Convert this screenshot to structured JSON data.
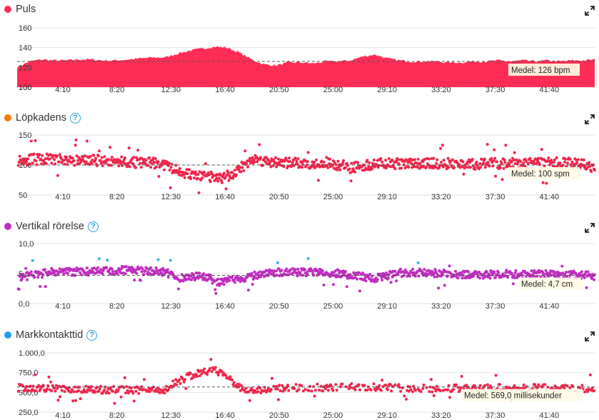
{
  "x_ticks": [
    "4:10",
    "8:20",
    "12:30",
    "16:40",
    "20:50",
    "25:00",
    "29:10",
    "33:20",
    "37:30",
    "41:40"
  ],
  "colors": {
    "pulse": "#ff2d55",
    "cadence": "#f57c00",
    "vertical": "#c02cc0",
    "ground": "#1ea1e8",
    "series_red": "#f0264a",
    "series_magenta": "#c02cc0",
    "vertical_high": "#3cb4e6",
    "vertical_top": "#5fb91f",
    "ground_low": "#5fb91f"
  },
  "chart_data": [
    {
      "id": "pulse",
      "type": "area",
      "title": "Puls",
      "help_icon": false,
      "yticks": [
        "160",
        "140",
        "120",
        "100"
      ],
      "ylim": [
        100,
        160
      ],
      "x_unit": "minutes",
      "xlim": [
        0,
        46.8
      ],
      "average": 126,
      "average_label": "Medel: 126 bpm",
      "x": [
        0,
        1,
        2,
        3,
        4,
        5,
        6,
        7,
        8,
        9,
        10,
        11,
        12,
        13,
        14,
        15,
        16,
        17,
        18,
        19,
        20,
        21,
        22,
        23,
        24,
        25,
        26,
        27,
        28,
        29,
        30,
        31,
        32,
        33,
        34,
        35,
        36,
        37,
        38,
        39,
        40,
        41,
        42,
        43,
        44,
        45,
        46,
        46.8
      ],
      "y": [
        120,
        126,
        128,
        127,
        127,
        128,
        128,
        127,
        127,
        128,
        129,
        130,
        130,
        134,
        137,
        139,
        141,
        140,
        135,
        128,
        123,
        122,
        125,
        125,
        124,
        126,
        126,
        127,
        131,
        133,
        129,
        127,
        126,
        126,
        126,
        125,
        125,
        126,
        126,
        127,
        126,
        127,
        126,
        127,
        126,
        127,
        127,
        128
      ]
    },
    {
      "id": "cadence",
      "type": "scatter",
      "title": "Löpkadens",
      "help_icon": true,
      "yticks": [
        "150",
        "100",
        "50"
      ],
      "ylim": [
        50,
        150
      ],
      "x_unit": "minutes",
      "xlim": [
        0,
        46.8
      ],
      "average": 100,
      "average_label": "Medel: 100 spm",
      "trend_x": [
        0,
        2,
        4,
        6,
        8,
        10,
        11.5,
        13,
        14.5,
        15.5,
        16.5,
        17.5,
        19,
        21,
        23,
        25,
        26,
        27,
        29,
        31,
        33,
        35,
        37,
        39,
        41,
        43,
        45,
        46.8
      ],
      "trend_y": [
        108,
        110,
        108,
        108,
        106,
        104,
        103,
        90,
        82,
        80,
        78,
        85,
        110,
        104,
        102,
        104,
        100,
        96,
        102,
        102,
        103,
        102,
        101,
        103,
        102,
        103,
        104,
        95
      ]
    },
    {
      "id": "vertical",
      "type": "scatter",
      "title": "Vertikal rörelse",
      "help_icon": true,
      "yticks": [
        "10,0",
        "5,0",
        "0,0"
      ],
      "ylim": [
        0,
        10
      ],
      "x_unit": "minutes",
      "xlim": [
        0,
        46.8
      ],
      "average": 4.7,
      "average_label": "Medel: 4,7 cm",
      "trend_x": [
        0,
        3,
        6,
        9,
        12,
        13,
        15,
        16.5,
        18,
        20,
        22,
        25,
        27,
        29,
        31,
        33,
        35,
        37,
        39,
        41,
        43,
        45,
        46.8
      ],
      "trend_y": [
        4.3,
        5.3,
        5.3,
        5.6,
        5.2,
        4.3,
        4.6,
        3.5,
        4.1,
        5.1,
        5.2,
        5.2,
        4.8,
        4.2,
        5.1,
        5.2,
        4.9,
        4.8,
        4.9,
        4.9,
        4.9,
        4.8,
        4.6
      ]
    },
    {
      "id": "ground",
      "type": "scatter",
      "title": "Markkontakttid",
      "help_icon": true,
      "yticks": [
        "1.000,0",
        "750,0",
        "500,0",
        "250,0"
      ],
      "ylim": [
        250,
        1000
      ],
      "x_unit": "minutes",
      "xlim": [
        0,
        46.8
      ],
      "average": 569,
      "average_label": "Medel: 569,0 millisekunder",
      "trend_x": [
        0,
        4,
        8,
        12,
        13,
        14.5,
        16,
        17,
        18,
        19,
        20,
        22,
        25,
        28,
        31,
        34,
        37,
        40,
        43,
        46,
        46.8
      ],
      "trend_y": [
        560,
        540,
        530,
        530,
        640,
        740,
        780,
        720,
        560,
        520,
        530,
        560,
        560,
        575,
        555,
        550,
        555,
        560,
        555,
        545,
        560
      ]
    }
  ]
}
